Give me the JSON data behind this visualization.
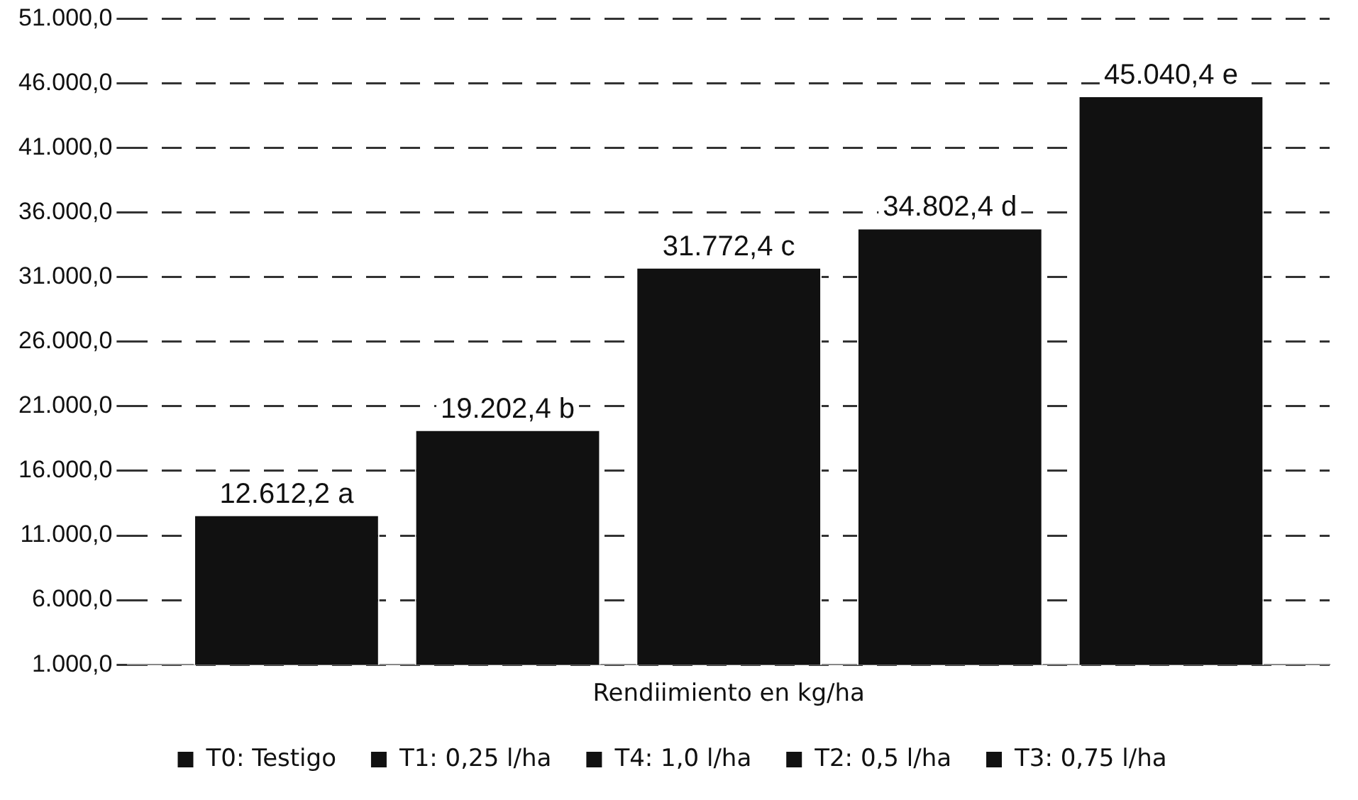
{
  "chart_data": {
    "type": "bar",
    "categories": [
      "Rendiimiento en kg/ha"
    ],
    "series": [
      {
        "name": "T0: Testigo",
        "color": "#111111",
        "values": [
          12612.2
        ],
        "value_labels": [
          "12.612,2 a"
        ]
      },
      {
        "name": "T1: 0,25 l/ha",
        "color": "#111111",
        "values": [
          19202.4
        ],
        "value_labels": [
          "19.202,4 b"
        ]
      },
      {
        "name": "T4: 1,0 l/ha",
        "color": "#111111",
        "values": [
          31772.4
        ],
        "value_labels": [
          "31.772,4 c"
        ]
      },
      {
        "name": "T2: 0,5 l/ha",
        "color": "#111111",
        "values": [
          34802.4
        ],
        "value_labels": [
          "34.802,4 d"
        ]
      },
      {
        "name": "T3: 0,75 l/ha",
        "color": "#111111",
        "values": [
          45040.4
        ],
        "value_labels": [
          "45.040,4 e"
        ]
      }
    ],
    "ylim": [
      1000,
      51000
    ],
    "yticks": [
      {
        "value": 1000,
        "label": "1.000,0"
      },
      {
        "value": 6000,
        "label": "6.000,0"
      },
      {
        "value": 11000,
        "label": "11.000,0"
      },
      {
        "value": 16000,
        "label": "16.000,0"
      },
      {
        "value": 21000,
        "label": "21.000,0"
      },
      {
        "value": 26000,
        "label": "26.000,0"
      },
      {
        "value": 31000,
        "label": "31.000,0"
      },
      {
        "value": 36000,
        "label": "36.000,0"
      },
      {
        "value": 41000,
        "label": "41.000,0"
      },
      {
        "value": 46000,
        "label": "46.000,0"
      },
      {
        "value": 51000,
        "label": "51.000,0"
      }
    ],
    "grid": "y",
    "legend": "bottom"
  }
}
